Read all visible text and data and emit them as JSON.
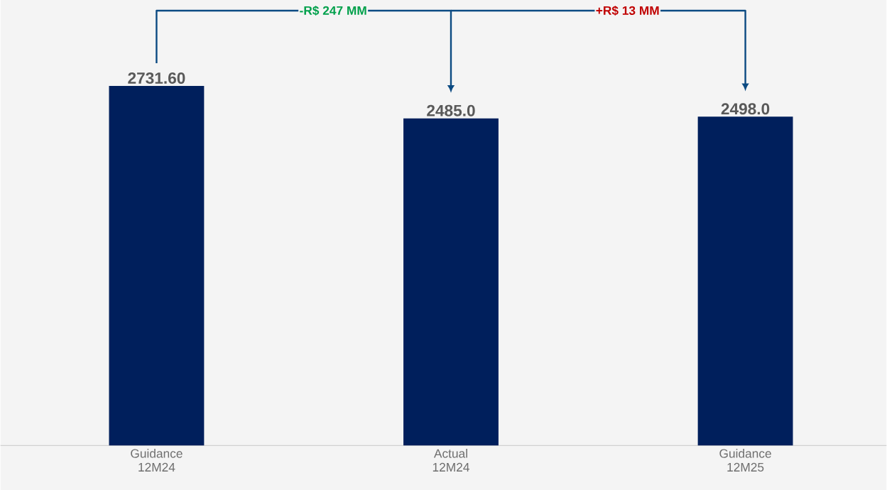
{
  "chart_data": {
    "type": "bar",
    "categories": [
      "Guidance 12M24",
      "Actual 12M24",
      "Guidance 12M25"
    ],
    "values": [
      2731.6,
      2485.0,
      2498.0
    ],
    "value_labels": [
      "2731.60",
      "2485.0",
      "2498.0"
    ],
    "color": "#001f5c",
    "ylim": [
      0,
      3384
    ],
    "tick_labels": "x",
    "annotations": [
      "-R$ 247 MM",
      "+R$ 13 MM"
    ]
  }
}
